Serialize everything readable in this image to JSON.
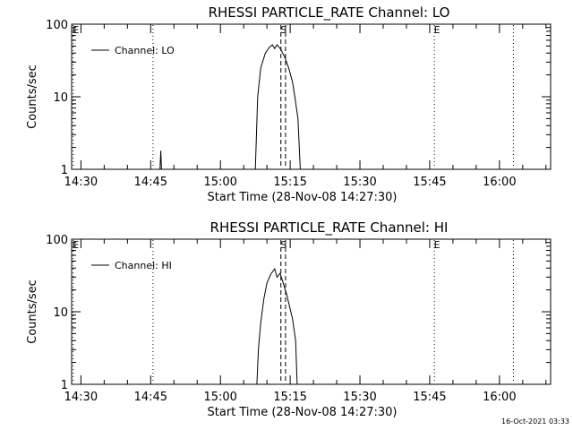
{
  "footer": {
    "timestamp": "16-Oct-2021 03:33"
  },
  "chart_data": [
    {
      "type": "line",
      "title": "RHESSI PARTICLE_RATE Channel: LO",
      "xlabel": "Start Time (28-Nov-08 14:27:30)",
      "ylabel": "Counts/sec",
      "y_scale": "log",
      "ylim": [
        1,
        100
      ],
      "xlim": [
        "14:28",
        "16:11"
      ],
      "x_ticks": [
        "14:30",
        "14:45",
        "15:00",
        "15:15",
        "15:30",
        "15:45",
        "16:00"
      ],
      "y_ticks": [
        "1",
        "10",
        "100"
      ],
      "legend": {
        "placement": "top-left",
        "entries": [
          "Channel: LO"
        ]
      },
      "series": [
        {
          "name": "Channel: LO",
          "points": [
            [
              "14:47:00",
              1
            ],
            [
              "14:47:10",
              1.8
            ],
            [
              "14:47:20",
              1
            ],
            [
              "15:07:30",
              1
            ],
            [
              "15:08:00",
              10
            ],
            [
              "15:08:40",
              25
            ],
            [
              "15:09:40",
              40
            ],
            [
              "15:10:30",
              48
            ],
            [
              "15:11:10",
              52
            ],
            [
              "15:11:40",
              46
            ],
            [
              "15:12:10",
              52
            ],
            [
              "15:13:00",
              45
            ],
            [
              "15:13:50",
              35
            ],
            [
              "15:14:40",
              25
            ],
            [
              "15:15:30",
              16
            ],
            [
              "15:16:00",
              10
            ],
            [
              "15:16:40",
              5
            ],
            [
              "15:17:10",
              1
            ]
          ]
        }
      ],
      "markers": [
        {
          "label": "E",
          "time": "14:28:20",
          "style": "dotted"
        },
        {
          "label": "",
          "time": "14:45:30",
          "style": "dotted"
        },
        {
          "label": "S",
          "time": "15:13:00",
          "style": "dashed"
        },
        {
          "label": "",
          "time": "15:14:00",
          "style": "dashed"
        },
        {
          "label": "E",
          "time": "15:46:00",
          "style": "dotted"
        },
        {
          "label": "",
          "time": "16:03:00",
          "style": "dotted"
        }
      ]
    },
    {
      "type": "line",
      "title": "RHESSI PARTICLE_RATE Channel: HI",
      "xlabel": "Start Time (28-Nov-08 14:27:30)",
      "ylabel": "Counts/sec",
      "y_scale": "log",
      "ylim": [
        1,
        100
      ],
      "xlim": [
        "14:28",
        "16:11"
      ],
      "x_ticks": [
        "14:30",
        "14:45",
        "15:00",
        "15:15",
        "15:30",
        "15:45",
        "16:00"
      ],
      "y_ticks": [
        "1",
        "10",
        "100"
      ],
      "legend": {
        "placement": "top-left",
        "entries": [
          "Channel: HI"
        ]
      },
      "series": [
        {
          "name": "Channel: HI",
          "points": [
            [
              "15:07:50",
              1
            ],
            [
              "15:08:10",
              3
            ],
            [
              "15:08:40",
              7
            ],
            [
              "15:09:20",
              15
            ],
            [
              "15:10:00",
              25
            ],
            [
              "15:10:50",
              33
            ],
            [
              "15:11:40",
              39
            ],
            [
              "15:12:10",
              30
            ],
            [
              "15:12:50",
              34
            ],
            [
              "15:13:30",
              25
            ],
            [
              "15:14:10",
              18
            ],
            [
              "15:14:50",
              12
            ],
            [
              "15:15:30",
              8
            ],
            [
              "15:16:10",
              4
            ],
            [
              "15:16:30",
              1
            ]
          ]
        }
      ],
      "markers": [
        {
          "label": "E",
          "time": "14:28:20",
          "style": "dotted"
        },
        {
          "label": "",
          "time": "14:45:30",
          "style": "dotted"
        },
        {
          "label": "S",
          "time": "15:13:00",
          "style": "dashed"
        },
        {
          "label": "",
          "time": "15:14:00",
          "style": "dashed"
        },
        {
          "label": "E",
          "time": "15:46:00",
          "style": "dotted"
        },
        {
          "label": "",
          "time": "16:03:00",
          "style": "dotted"
        }
      ]
    }
  ]
}
